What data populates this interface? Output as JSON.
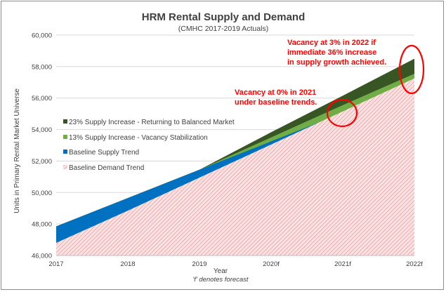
{
  "chart_data": {
    "type": "area",
    "title": "HRM Rental Supply and Demand",
    "subtitle": "(CMHC 2017-2019 Actuals)",
    "xlabel": "Year",
    "x_note": "'f' denotes forecast",
    "ylabel": "Units in Primary Rental Market Universe",
    "categories": [
      "2017",
      "2018",
      "2019",
      "2020f",
      "2021f",
      "2022f"
    ],
    "ylim": [
      46000,
      60000
    ],
    "yticks": [
      "46,000",
      "48,000",
      "50,000",
      "52,000",
      "54,000",
      "56,000",
      "58,000",
      "60,000"
    ],
    "grid": true,
    "legend_placement": "left",
    "series": [
      {
        "name": "23% Supply Increase - Returning to Balanced Market",
        "color": "#375623",
        "values": [
          47850,
          49650,
          51450,
          53830,
          56150,
          58500
        ]
      },
      {
        "name": " 13% Supply Increase - Vacancy Stabilization",
        "color": "#70ad47",
        "values": [
          47850,
          49650,
          51450,
          53500,
          55550,
          57550
        ]
      },
      {
        "name": "Baseline Supply Trend",
        "color": "#0070c0",
        "values": [
          47850,
          49650,
          51450,
          53250,
          55050,
          56850
        ]
      },
      {
        "name": "Baseline Demand Trend",
        "color": "#f4b6b8",
        "values": [
          46800,
          48850,
          50950,
          53050,
          55150,
          57250
        ]
      }
    ],
    "annotations": [
      {
        "lines": [
          "Vacancy at 3% in 2022 if",
          "immediate 36% increase",
          "in supply growth achieved."
        ],
        "color": "#ff0000"
      },
      {
        "lines": [
          "Vacancy at 0% in 2021",
          "under baseline trends."
        ],
        "color": "#ff0000"
      }
    ]
  }
}
